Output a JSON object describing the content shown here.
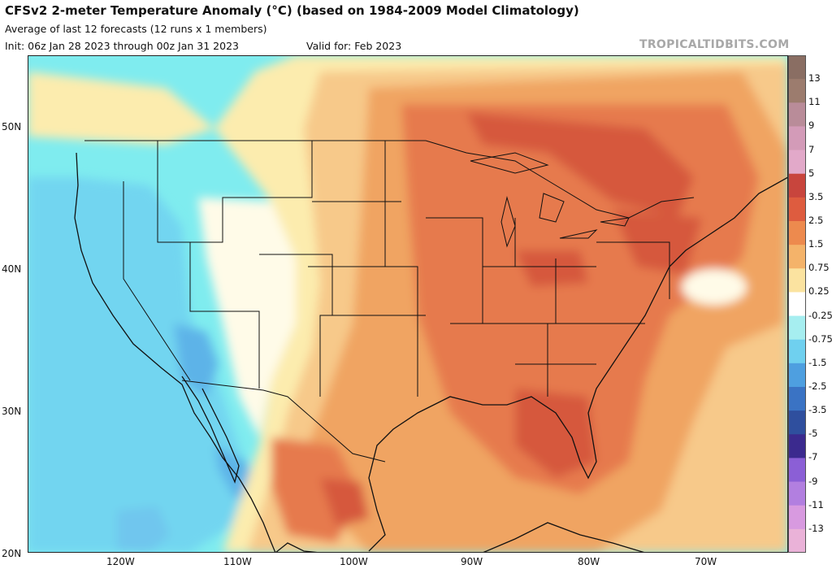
{
  "header": {
    "title": "CFSv2 2-meter Temperature Anomaly (°C) (based on 1984-2009 Model Climatology)",
    "subtitle": "Average of last 12 forecasts (12 runs x 1 members)",
    "init": "Init: 06z Jan 28 2023 through 00z Jan 31 2023",
    "valid": "Valid for: Feb 2023",
    "brand": "TROPICALTIDBITS.COM"
  },
  "axes": {
    "lat_labels": [
      "50N",
      "40N",
      "30N",
      "20N"
    ],
    "lon_labels": [
      "120W",
      "110W",
      "100W",
      "90W",
      "80W",
      "70W"
    ]
  },
  "colorbar": {
    "labels": [
      "13",
      "11",
      "9",
      "7",
      "5",
      "3.5",
      "2.5",
      "1.5",
      "0.75",
      "0.25",
      "-0.25",
      "-0.75",
      "-1.5",
      "-2.5",
      "-3.5",
      "-5",
      "-7",
      "-9",
      "-11",
      "-13"
    ],
    "colors": [
      "#8a6e63",
      "#9c7c6e",
      "#b98c99",
      "#d39bb8",
      "#e2a9c9",
      "#c8453d",
      "#de5c3f",
      "#ed8a4e",
      "#f4b36a",
      "#fbe3a0",
      "#ffffff",
      "#a6eef0",
      "#6fd0ef",
      "#4e9fe0",
      "#3a73c4",
      "#2f4f9e",
      "#3b2a8e",
      "#8b5fd6",
      "#b27fe0",
      "#d89ae0",
      "#eab2d8"
    ]
  },
  "colors": {
    "background": "#7fecef",
    "neutral": "#fffbe8",
    "warm_pale": "#fcecae",
    "warm_light": "#f7c98a",
    "warm_mid": "#f0a462",
    "warm_strong": "#e67a4e",
    "warm_deep": "#d6583d",
    "cool_mid": "#72d5f0",
    "cool_deep": "#5db3e8"
  }
}
